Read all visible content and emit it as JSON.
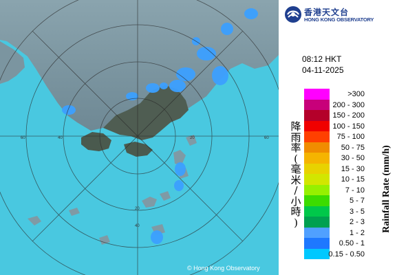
{
  "header": {
    "org_name_cn": "香港天文台",
    "org_name_en": "HONG KONG OBSERVATORY"
  },
  "timestamp": {
    "time": "08:12 HKT",
    "date": "04-11-2025"
  },
  "map": {
    "copyright": "© Hong Kong Observatory",
    "range_ring_labels": [
      "60",
      "40",
      "20",
      "40",
      "60",
      "20"
    ]
  },
  "legend": {
    "title_en": "Rainfall Rate (mm/h)",
    "title_cn": "降雨率(毫米/小時)",
    "title_cn_chars": [
      "降",
      "雨",
      "率",
      "(",
      "毫",
      "米",
      "/",
      "小",
      "時",
      ")"
    ],
    "items": [
      {
        "label": ">300",
        "color": "#ff00ff"
      },
      {
        "label": "200 - 300",
        "color": "#c8007a"
      },
      {
        "label": "150 - 200",
        "color": "#b4002a"
      },
      {
        "label": "100 - 150",
        "color": "#f00000"
      },
      {
        "label": "75 - 100",
        "color": "#ff4000"
      },
      {
        "label": "50 - 75",
        "color": "#f08c00"
      },
      {
        "label": "30 - 50",
        "color": "#f5b400"
      },
      {
        "label": "15 - 30",
        "color": "#e8d200"
      },
      {
        "label": "10 - 15",
        "color": "#d2e600"
      },
      {
        "label": "7 - 10",
        "color": "#96f000"
      },
      {
        "label": "5 - 7",
        "color": "#3cdc00"
      },
      {
        "label": "3 - 5",
        "color": "#00c84a"
      },
      {
        "label": "2 - 3",
        "color": "#00a050"
      },
      {
        "label": "1 - 2",
        "color": "#50a0ff"
      },
      {
        "label": "0.50 - 1",
        "color": "#1e78ff"
      },
      {
        "label": "0.15 - 0.50",
        "color": "#00c8ff"
      }
    ]
  },
  "colors": {
    "sea": "#49c8e0",
    "land": "#7f9aa5",
    "rain_light": "#3ca0ff",
    "range_rings": "#2a2a2a",
    "brand": "#1f3f8f"
  }
}
